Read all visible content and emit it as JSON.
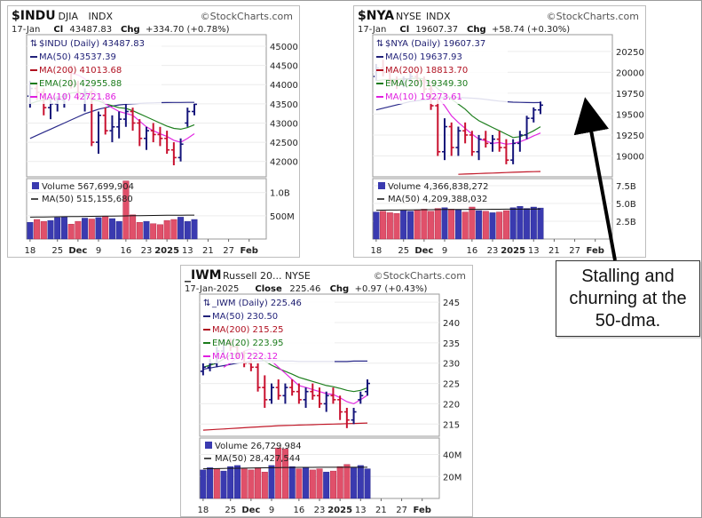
{
  "chart_data": [
    {
      "type": "bar",
      "symbol": "$INDU",
      "exchange": "DJIA",
      "kind": "INDX",
      "brand": "StockCharts.com",
      "date": "17-Jan",
      "close_label": "Cl",
      "close": "43487.83",
      "chg_label": "Chg",
      "chg": "+334.70 (+0.78%)",
      "legend": [
        {
          "label": "$INDU (Daily) 43487.83",
          "color": "#1a1a6e"
        },
        {
          "label": "MA(50) 43537.39",
          "color": "#22227a"
        },
        {
          "label": "MA(200) 41013.68",
          "color": "#b01020"
        },
        {
          "label": "EMA(20) 42955.88",
          "color": "#1b7b1b"
        },
        {
          "label": "MA(10) 42721.86",
          "color": "#e020e0"
        }
      ],
      "ylim": [
        41600,
        45300
      ],
      "yticks": [
        "45000",
        "44500",
        "44000",
        "43500",
        "43000",
        "42500",
        "42000"
      ],
      "prices": [
        [
          43700,
          44100,
          43400,
          43900
        ],
        [
          43900,
          44050,
          43600,
          43800
        ],
        [
          43800,
          43900,
          43200,
          43400
        ],
        [
          43400,
          43600,
          43100,
          43500
        ],
        [
          43500,
          43700,
          43300,
          43600
        ],
        [
          43600,
          43750,
          43400,
          43700
        ],
        [
          44300,
          44500,
          43900,
          44000
        ],
        [
          44000,
          44100,
          43600,
          43700
        ],
        [
          43700,
          43900,
          43300,
          43800
        ],
        [
          43800,
          43850,
          42400,
          42500
        ],
        [
          42500,
          43300,
          42200,
          43200
        ],
        [
          43200,
          43400,
          42700,
          42800
        ],
        [
          42800,
          43200,
          42500,
          42900
        ],
        [
          42900,
          43300,
          42600,
          43100
        ],
        [
          43100,
          43500,
          42900,
          43300
        ],
        [
          43300,
          43400,
          42800,
          43000
        ],
        [
          43000,
          43100,
          42400,
          42600
        ],
        [
          42600,
          42900,
          42300,
          42800
        ],
        [
          42800,
          43000,
          42500,
          42700
        ],
        [
          42700,
          42900,
          42400,
          42600
        ],
        [
          42600,
          42800,
          42200,
          42300
        ],
        [
          42300,
          42500,
          41900,
          42100
        ],
        [
          42100,
          42600,
          42000,
          42450
        ],
        [
          43000,
          43400,
          42900,
          43300
        ],
        [
          43300,
          43500,
          43200,
          43487
        ]
      ],
      "ma50": [
        42600,
        42680,
        42760,
        42840,
        42920,
        43000,
        43080,
        43160,
        43240,
        43300,
        43360,
        43400,
        43440,
        43470,
        43490,
        43500,
        43510,
        43520,
        43525,
        43530,
        43533,
        43535,
        43536,
        43537,
        43537
      ],
      "ema20": [
        43500,
        43560,
        43600,
        43620,
        43660,
        43700,
        43780,
        43800,
        43760,
        43600,
        43580,
        43500,
        43450,
        43400,
        43380,
        43320,
        43240,
        43160,
        43080,
        43000,
        42920,
        42860,
        42840,
        42880,
        42956
      ],
      "ma10": [
        null,
        null,
        null,
        null,
        null,
        null,
        44300,
        44250,
        44150,
        43900,
        43700,
        43500,
        43400,
        43300,
        43250,
        43200,
        43050,
        42900,
        42800,
        42720,
        42650,
        42550,
        42500,
        42600,
        42722
      ],
      "vol_label": "Volume 567,699,904",
      "vol_ma_label": "MA(50) 515,155,680",
      "vol_ticks": [
        "1.0B",
        "500M"
      ],
      "vol_max": 1300,
      "volume": [
        360,
        420,
        380,
        400,
        460,
        470,
        320,
        380,
        450,
        430,
        460,
        480,
        440,
        380,
        1250,
        520,
        360,
        380,
        330,
        310,
        400,
        420,
        470,
        380,
        420
      ],
      "vol_ma": [
        470,
        472,
        474,
        476,
        478,
        480,
        482,
        484,
        486,
        488,
        490,
        492,
        494,
        496,
        498,
        500,
        502,
        504,
        506,
        508,
        510,
        511,
        513,
        514,
        515
      ],
      "vol_up": [
        true,
        false,
        false,
        true,
        true,
        true,
        false,
        false,
        true,
        false,
        true,
        false,
        true,
        true,
        false,
        false,
        false,
        true,
        false,
        false,
        false,
        false,
        true,
        true,
        true
      ],
      "xticks": [
        {
          "label": "18",
          "i": 0
        },
        {
          "label": "25",
          "i": 4
        },
        {
          "label": "Dec",
          "i": 7
        },
        {
          "label": "9",
          "i": 10
        },
        {
          "label": "16",
          "i": 14
        },
        {
          "label": "23",
          "i": 17
        },
        {
          "label": "2025",
          "i": 20
        },
        {
          "label": "13",
          "i": 23
        },
        {
          "label": "21",
          "i": 26
        },
        {
          "label": "27",
          "i": 29
        },
        {
          "label": "Feb",
          "i": 32
        }
      ]
    },
    {
      "type": "bar",
      "symbol": "$NYA",
      "exchange": "NYSE",
      "kind": "INDX",
      "brand": "StockCharts.com",
      "date": "17-Jan",
      "close_label": "Cl",
      "close": "19607.37",
      "chg_label": "Chg",
      "chg": "+58.74 (+0.30%)",
      "legend": [
        {
          "label": "$NYA (Daily) 19607.37",
          "color": "#1a1a6e"
        },
        {
          "label": "MA(50) 19637.93",
          "color": "#22227a"
        },
        {
          "label": "MA(200) 18813.70",
          "color": "#b01020"
        },
        {
          "label": "EMA(20) 19349.30",
          "color": "#1b7b1b"
        },
        {
          "label": "MA(10) 19273.61",
          "color": "#e020e0"
        }
      ],
      "ylim": [
        18750,
        20450
      ],
      "yticks": [
        "20250",
        "20000",
        "19750",
        "19500",
        "19250",
        "19000"
      ],
      "prices": [
        [
          19950,
          20100,
          19900,
          20050
        ],
        [
          20050,
          20150,
          19950,
          20000
        ],
        [
          20000,
          20050,
          19850,
          19900
        ],
        [
          19900,
          19950,
          19800,
          19880
        ],
        [
          19880,
          19950,
          19820,
          19920
        ],
        [
          19920,
          20000,
          19880,
          19950
        ],
        [
          19950,
          20000,
          19850,
          19900
        ],
        [
          19900,
          19950,
          19750,
          19800
        ],
        [
          19800,
          19850,
          19550,
          19600
        ],
        [
          19600,
          19700,
          19000,
          19050
        ],
        [
          19050,
          19450,
          18950,
          19350
        ],
        [
          19350,
          19400,
          19000,
          19100
        ],
        [
          19100,
          19350,
          19000,
          19300
        ],
        [
          19300,
          19400,
          19150,
          19250
        ],
        [
          19250,
          19300,
          19000,
          19050
        ],
        [
          19050,
          19250,
          18950,
          19200
        ],
        [
          19200,
          19300,
          19100,
          19150
        ],
        [
          19150,
          19250,
          19050,
          19200
        ],
        [
          19200,
          19300,
          19050,
          19100
        ],
        [
          19100,
          19200,
          18900,
          18950
        ],
        [
          18950,
          19200,
          18900,
          19150
        ],
        [
          19150,
          19300,
          19050,
          19250
        ],
        [
          19250,
          19480,
          19200,
          19450
        ],
        [
          19450,
          19580,
          19400,
          19550
        ],
        [
          19550,
          19650,
          19500,
          19607
        ]
      ],
      "ma50": [
        19550,
        19570,
        19590,
        19610,
        19630,
        19650,
        19660,
        19670,
        19680,
        19690,
        19700,
        19700,
        19700,
        19695,
        19690,
        19685,
        19675,
        19665,
        19655,
        19648,
        19643,
        19640,
        19638,
        19637,
        19638
      ],
      "ema20": [
        19900,
        19910,
        19915,
        19915,
        19920,
        19925,
        19930,
        19920,
        19880,
        19800,
        19750,
        19680,
        19620,
        19560,
        19480,
        19420,
        19380,
        19340,
        19300,
        19260,
        19220,
        19230,
        19260,
        19300,
        19349
      ],
      "ma10": [
        null,
        null,
        null,
        null,
        null,
        null,
        null,
        19900,
        19820,
        19700,
        19600,
        19480,
        19400,
        19330,
        19260,
        19200,
        19180,
        19150,
        19160,
        19140,
        19150,
        19170,
        19200,
        19240,
        19274
      ],
      "ma200": [
        null,
        null,
        null,
        null,
        null,
        null,
        null,
        null,
        null,
        null,
        null,
        null,
        18780,
        18783,
        18786,
        18789,
        18792,
        18795,
        18798,
        18801,
        18804,
        18807,
        18810,
        18812,
        18814
      ],
      "vol_label": "Volume 4,366,838,272",
      "vol_ma_label": "MA(50) 4,209,388,032",
      "vol_ticks": [
        "7.5B",
        "5.0B",
        "2.5B"
      ],
      "vol_max": 8500,
      "volume": [
        3800,
        3900,
        3700,
        3600,
        4000,
        3900,
        4100,
        4200,
        3900,
        4300,
        4400,
        4200,
        4100,
        3800,
        4500,
        4000,
        3900,
        3700,
        3800,
        4000,
        4400,
        4600,
        4300,
        4500,
        4367
      ],
      "vol_ma": [
        4050,
        4060,
        4070,
        4080,
        4090,
        4100,
        4110,
        4120,
        4130,
        4140,
        4150,
        4155,
        4160,
        4165,
        4170,
        4175,
        4180,
        4185,
        4190,
        4195,
        4200,
        4203,
        4206,
        4208,
        4209
      ],
      "vol_up": [
        true,
        false,
        false,
        false,
        true,
        true,
        false,
        false,
        false,
        false,
        true,
        false,
        true,
        false,
        false,
        true,
        false,
        true,
        false,
        false,
        true,
        true,
        true,
        true,
        true
      ],
      "xticks": [
        {
          "label": "18",
          "i": 0
        },
        {
          "label": "25",
          "i": 4
        },
        {
          "label": "Dec",
          "i": 7
        },
        {
          "label": "9",
          "i": 10
        },
        {
          "label": "16",
          "i": 14
        },
        {
          "label": "23",
          "i": 17
        },
        {
          "label": "2025",
          "i": 20
        },
        {
          "label": "13",
          "i": 23
        },
        {
          "label": "21",
          "i": 26
        },
        {
          "label": "27",
          "i": 29
        },
        {
          "label": "Feb",
          "i": 32
        }
      ]
    },
    {
      "type": "bar",
      "symbol": "_IWM",
      "exchange": "Russell 20... NYSE",
      "kind": "",
      "brand": "StockCharts.com",
      "date": "17-Jan-2025",
      "close_label": "Close",
      "close": "225.46",
      "chg_label": "Chg",
      "chg": "+0.97 (+0.43%)",
      "legend": [
        {
          "label": "_IWM (Daily) 225.46",
          "color": "#1a1a6e"
        },
        {
          "label": "MA(50) 230.50",
          "color": "#22227a"
        },
        {
          "label": "MA(200) 215.25",
          "color": "#b01020"
        },
        {
          "label": "EMA(20) 223.95",
          "color": "#1b7b1b"
        },
        {
          "label": "MA(10) 222.12",
          "color": "#e020e0"
        }
      ],
      "ylim": [
        212,
        247
      ],
      "yticks": [
        "245",
        "240",
        "235",
        "230",
        "225",
        "220",
        "215"
      ],
      "prices": [
        [
          228,
          230,
          227,
          229
        ],
        [
          229,
          231,
          228,
          230
        ],
        [
          230,
          234,
          229,
          233
        ],
        [
          233,
          236,
          232,
          235
        ],
        [
          235,
          236,
          233,
          234
        ],
        [
          234,
          235,
          231,
          232
        ],
        [
          232,
          233,
          229,
          230
        ],
        [
          230,
          231,
          228,
          229
        ],
        [
          229,
          230,
          223,
          224
        ],
        [
          224,
          227,
          219,
          221
        ],
        [
          221,
          225,
          220,
          224
        ],
        [
          224,
          226,
          221,
          222
        ],
        [
          222,
          225,
          220,
          224
        ],
        [
          224,
          226,
          222,
          223
        ],
        [
          223,
          225,
          220,
          221
        ],
        [
          221,
          224,
          219,
          223
        ],
        [
          223,
          225,
          221,
          222
        ],
        [
          222,
          224,
          219,
          220
        ],
        [
          220,
          223,
          218,
          222
        ],
        [
          222,
          224,
          220,
          221
        ],
        [
          221,
          222,
          216,
          218
        ],
        [
          218,
          219,
          214,
          216
        ],
        [
          216,
          219,
          215,
          218
        ],
        [
          221,
          223,
          220,
          222
        ],
        [
          223,
          226,
          222,
          225
        ]
      ],
      "ma50": [
        228.5,
        228.8,
        229.1,
        229.4,
        229.7,
        230.0,
        230.2,
        230.4,
        230.5,
        230.6,
        230.6,
        230.6,
        230.5,
        230.5,
        230.4,
        230.4,
        230.4,
        230.4,
        230.4,
        230.4,
        230.4,
        230.4,
        230.5,
        230.5,
        230.5
      ],
      "ema20": [
        229,
        229.5,
        230,
        231,
        232,
        232.5,
        232.5,
        232.3,
        231.5,
        230.5,
        229.5,
        228.7,
        228,
        227.3,
        226.5,
        226,
        225.5,
        225,
        224.5,
        224.2,
        223.8,
        223.3,
        223,
        223.3,
        223.95
      ],
      "ma10": [
        null,
        null,
        null,
        229,
        230,
        231.5,
        233,
        233.5,
        233,
        232,
        230.5,
        229,
        227.5,
        226,
        224.5,
        224,
        223.5,
        223,
        222.5,
        222.3,
        221.5,
        220.5,
        220,
        221,
        222.12
      ],
      "ma200": [
        213.5,
        213.6,
        213.7,
        213.8,
        213.9,
        214.0,
        214.1,
        214.2,
        214.3,
        214.4,
        214.5,
        214.6,
        214.65,
        214.7,
        214.75,
        214.8,
        214.85,
        214.9,
        214.95,
        215.0,
        215.05,
        215.1,
        215.15,
        215.2,
        215.25
      ],
      "vol_label": "Volume 26,729,984",
      "vol_ma_label": "MA(50) 28,427,544",
      "vol_ticks": [
        "40M",
        "20M"
      ],
      "vol_max": 55,
      "volume": [
        26,
        28,
        27,
        25,
        29,
        30,
        27,
        26,
        28,
        24,
        30,
        46,
        45,
        29,
        27,
        28,
        26,
        27,
        24,
        25,
        29,
        31,
        28,
        30,
        27
      ],
      "vol_ma": [
        27.0,
        27.1,
        27.2,
        27.3,
        27.4,
        27.5,
        27.6,
        27.7,
        27.8,
        27.9,
        28.0,
        28.1,
        28.2,
        28.25,
        28.3,
        28.32,
        28.34,
        28.36,
        28.38,
        28.39,
        28.4,
        28.41,
        28.42,
        28.42,
        28.43
      ],
      "vol_up": [
        true,
        true,
        false,
        true,
        true,
        true,
        false,
        false,
        false,
        false,
        true,
        false,
        false,
        true,
        false,
        true,
        false,
        false,
        true,
        false,
        false,
        false,
        true,
        true,
        true
      ],
      "xticks": [
        {
          "label": "18",
          "i": 0
        },
        {
          "label": "25",
          "i": 4
        },
        {
          "label": "Dec",
          "i": 7
        },
        {
          "label": "9",
          "i": 10
        },
        {
          "label": "16",
          "i": 14
        },
        {
          "label": "23",
          "i": 17
        },
        {
          "label": "2025",
          "i": 20
        },
        {
          "label": "13",
          "i": 23
        },
        {
          "label": "21",
          "i": 26
        },
        {
          "label": "27",
          "i": 29
        },
        {
          "label": "Feb",
          "i": 32
        }
      ]
    }
  ],
  "annotation": {
    "text": "Stalling and\nchurning at the\n50-dma."
  }
}
